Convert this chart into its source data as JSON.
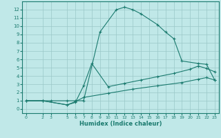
{
  "line1_x": [
    0,
    2,
    3,
    5,
    6,
    7,
    9,
    11,
    12,
    13,
    14,
    16,
    17,
    18,
    19,
    21,
    22,
    23
  ],
  "line1_y": [
    1,
    1,
    1,
    1,
    1,
    1,
    9.3,
    12.0,
    12.3,
    12.0,
    11.5,
    10.2,
    9.3,
    8.5,
    5.8,
    5.5,
    5.4,
    3.5
  ],
  "line2_x": [
    0,
    2,
    5,
    6,
    7,
    8,
    10,
    12,
    14,
    16,
    18,
    20,
    21,
    22,
    23
  ],
  "line2_y": [
    1,
    1,
    0.5,
    0.8,
    2.8,
    5.5,
    2.7,
    3.1,
    3.5,
    3.9,
    4.3,
    4.8,
    5.2,
    4.9,
    4.5
  ],
  "line3_x": [
    0,
    2,
    5,
    6,
    7,
    10,
    13,
    16,
    19,
    21,
    22,
    23
  ],
  "line3_y": [
    1,
    1.0,
    0.5,
    0.9,
    1.4,
    1.9,
    2.4,
    2.8,
    3.2,
    3.6,
    3.8,
    3.5
  ],
  "color": "#1a7a6e",
  "bg_color": "#c0e8e8",
  "grid_color": "#9ac8c8",
  "xlabel": "Humidex (Indice chaleur)",
  "xlim": [
    -0.5,
    23.5
  ],
  "ylim": [
    -0.5,
    13
  ],
  "xticks": [
    0,
    2,
    3,
    5,
    6,
    7,
    8,
    9,
    10,
    11,
    12,
    13,
    14,
    15,
    16,
    17,
    18,
    19,
    20,
    21,
    22,
    23
  ],
  "yticks": [
    0,
    1,
    2,
    3,
    4,
    5,
    6,
    7,
    8,
    9,
    10,
    11,
    12
  ],
  "marker": "+",
  "markersize": 3.5,
  "linewidth": 0.8,
  "tick_fontsize_x": 4.5,
  "tick_fontsize_y": 5.0,
  "xlabel_fontsize": 6.0
}
